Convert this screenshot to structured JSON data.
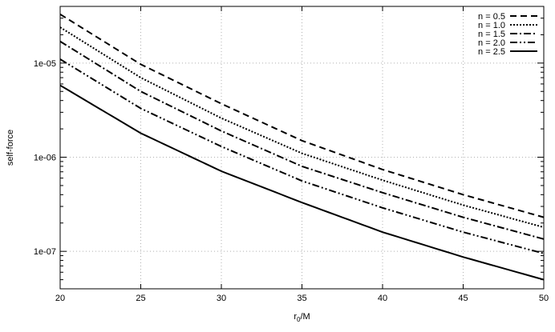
{
  "chart_data": {
    "type": "line",
    "title": "",
    "xlabel": "r0/M",
    "xlabel_main": "r",
    "xlabel_sub": "0",
    "xlabel_rest": "/M",
    "ylabel": "self-force",
    "xlim": [
      20,
      50
    ],
    "ylim": [
      4e-08,
      4e-05
    ],
    "yscale": "log",
    "grid": true,
    "legend_position": "top-right",
    "x_ticks": [
      20,
      25,
      30,
      35,
      40,
      45,
      50
    ],
    "x_tick_labels": [
      "20",
      "25",
      "30",
      "35",
      "40",
      "45",
      "50"
    ],
    "y_ticks": [
      1e-07,
      1e-06,
      1e-05
    ],
    "y_tick_labels": [
      "1e-07",
      "1e-06",
      "1e-05"
    ],
    "x": [
      20,
      25,
      30,
      35,
      40,
      45,
      50
    ],
    "series": [
      {
        "name": "n = 0.5",
        "style": "dashed",
        "values": [
          3.3e-05,
          9.7e-06,
          3.7e-06,
          1.5e-06,
          7.4e-07,
          4e-07,
          2.3e-07
        ]
      },
      {
        "name": "n = 1.0",
        "style": "dotted",
        "values": [
          2.4e-05,
          7e-06,
          2.6e-06,
          1.1e-06,
          5.7e-07,
          3.1e-07,
          1.8e-07
        ]
      },
      {
        "name": "n = 1.5",
        "style": "dashdot",
        "values": [
          1.7e-05,
          5e-06,
          1.9e-06,
          8e-07,
          4.2e-07,
          2.3e-07,
          1.35e-07
        ]
      },
      {
        "name": "n = 2.0",
        "style": "dashdotdot",
        "values": [
          1.1e-05,
          3.3e-06,
          1.3e-06,
          5.6e-07,
          2.9e-07,
          1.6e-07,
          9.5e-08
        ]
      },
      {
        "name": "n = 2.5",
        "style": "solid",
        "values": [
          5.8e-06,
          1.8e-06,
          7.1e-07,
          3.3e-07,
          1.6e-07,
          8.7e-08,
          5e-08
        ]
      }
    ]
  }
}
